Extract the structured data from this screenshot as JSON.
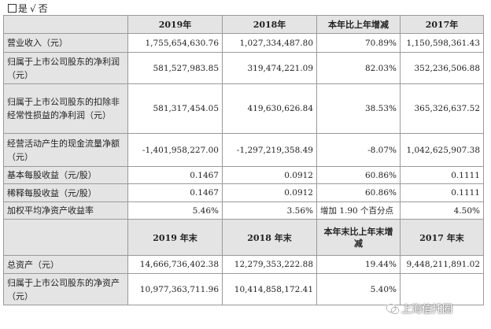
{
  "checkbox_line": {
    "box": "",
    "yes": "是",
    "check": "√",
    "no": "否"
  },
  "table1": {
    "headers": [
      "",
      "2019年",
      "2018年",
      "本年比上年增减",
      "2017年"
    ],
    "rows": [
      {
        "label": "营业收入（元）",
        "v2019": "1,755,654,630.76",
        "v2018": "1,027,334,487.80",
        "change": "70.89%",
        "v2017": "1,150,598,361.43"
      },
      {
        "label": "归属于上市公司股东的净利润（元）",
        "v2019": "581,527,983.85",
        "v2018": "319,474,221.09",
        "change": "82.03%",
        "v2017": "352,236,506.88"
      },
      {
        "label": "归属于上市公司股东的扣除非经常性损益的净利润（元）",
        "v2019": "581,317,454.05",
        "v2018": "419,630,626.84",
        "change": "38.53%",
        "v2017": "365,326,637.52"
      },
      {
        "label": "经营活动产生的现金流量净额（元）",
        "v2019": "-1,401,958,227.00",
        "v2018": "-1,297,219,358.49",
        "change": "-8.07%",
        "v2017": "1,042,625,907.38"
      },
      {
        "label": "基本每股收益（元/股）",
        "v2019": "0.1467",
        "v2018": "0.0912",
        "change": "60.86%",
        "v2017": "0.1111"
      },
      {
        "label": "稀释每股收益（元/股）",
        "v2019": "0.1467",
        "v2018": "0.0912",
        "change": "60.86%",
        "v2017": "0.1111"
      },
      {
        "label": "加权平均净资产收益率",
        "v2019": "5.46%",
        "v2018": "3.56%",
        "change": "增加 1.90 个百分点",
        "v2017": "4.50%"
      }
    ]
  },
  "table2": {
    "headers": [
      "",
      "2019 年末",
      "2018 年末",
      "本年末比上年末增减",
      "2017 年末"
    ],
    "rows": [
      {
        "label": "总资产（元）",
        "v2019": "14,666,736,402.38",
        "v2018": "12,279,353,222.88",
        "change": "19.44%",
        "v2017": "9,448,211,891.02"
      },
      {
        "label": "归属于上市公司股东的净资产（元）",
        "v2019": "10,977,363,711.96",
        "v2018": "10,414,858,172.41",
        "change": "5.40%",
        "v2017": ""
      }
    ]
  },
  "watermark": {
    "icon": "wechat-icon",
    "text": "上海信托圈"
  }
}
